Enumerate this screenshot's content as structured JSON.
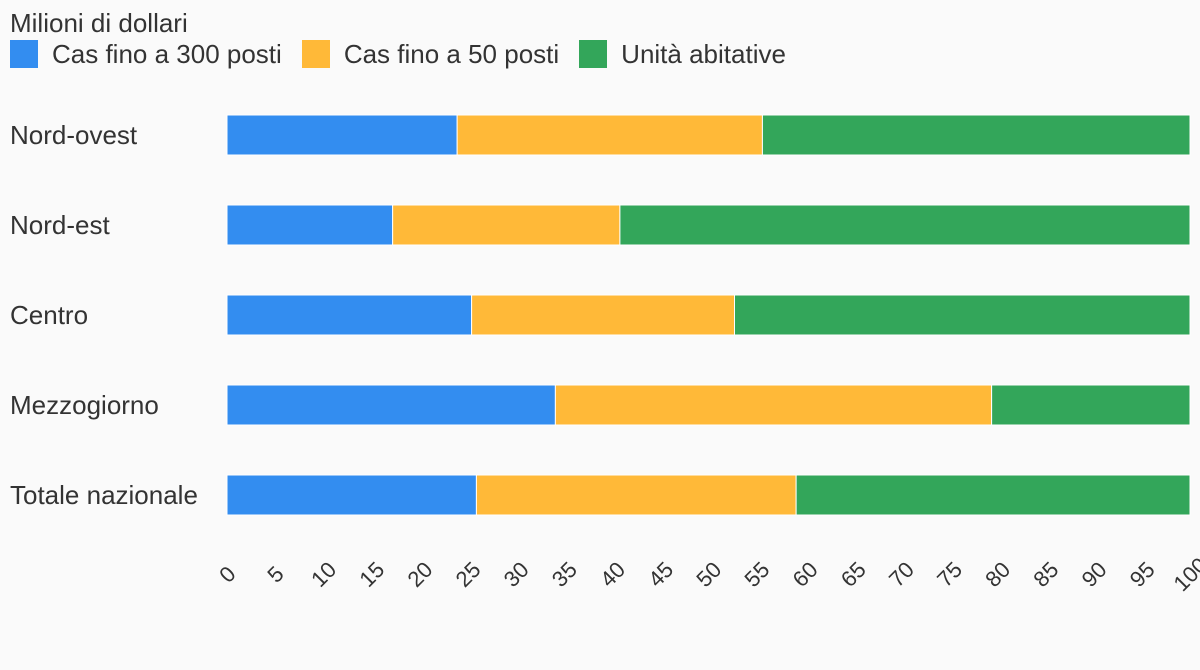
{
  "chart_data": {
    "type": "bar",
    "orientation": "horizontal",
    "stacked": true,
    "title": "",
    "unit_label": "Milioni di dollari",
    "xlabel": "",
    "ylabel": "",
    "xlim": [
      0,
      100
    ],
    "x_ticks": [
      "0",
      "5",
      "10",
      "15",
      "20",
      "25",
      "30",
      "35",
      "40",
      "45",
      "50",
      "55",
      "60",
      "65",
      "70",
      "75",
      "80",
      "85",
      "90",
      "95",
      "100"
    ],
    "grid": false,
    "legend_position": "top-left",
    "categories": [
      "Nord-ovest",
      "Nord-est",
      "Centro",
      "Mezzogiorno",
      "Totale nazionale"
    ],
    "series": [
      {
        "name": "Cas fino a 300 posti",
        "color": "#338df0",
        "values": [
          23.9,
          17.2,
          25.4,
          34.1,
          25.9
        ]
      },
      {
        "name": "Cas fino a 50 posti",
        "color": "#ffb938",
        "values": [
          31.7,
          23.6,
          27.3,
          45.3,
          33.2
        ]
      },
      {
        "name": "Unità abitative",
        "color": "#33a65a",
        "values": [
          44.4,
          59.2,
          47.3,
          20.6,
          40.9
        ]
      }
    ]
  }
}
